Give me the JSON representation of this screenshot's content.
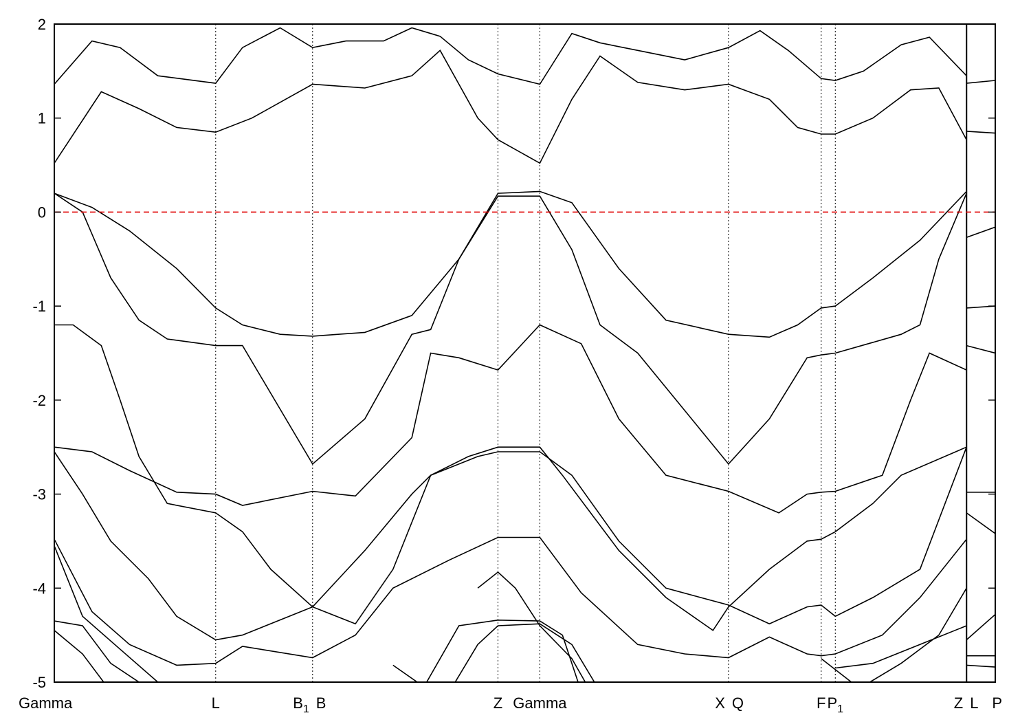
{
  "chart_data": {
    "type": "line",
    "title": "",
    "xlabel": "",
    "ylabel": "",
    "ylim": [
      -5,
      2
    ],
    "yticks": [
      2,
      1,
      0,
      -1,
      -2,
      -3,
      -4,
      -5
    ],
    "ytick_labels": [
      "2",
      "1",
      "0",
      "-1",
      "-2",
      "-3",
      "-4",
      "-5"
    ],
    "fermi_level": 0,
    "fermi_line_color": "#e00000",
    "grid": "dotted vertical lines at high-symmetry points",
    "xlim": [
      0,
      1
    ],
    "kpoints": [
      {
        "pos": 0.0,
        "label": "Gamma"
      },
      {
        "pos": 0.1715,
        "label": "L"
      },
      {
        "pos": 0.2745,
        "label": "B",
        "sub": "1"
      },
      {
        "pos": 0.2745,
        "label": "B"
      },
      {
        "pos": 0.4715,
        "label": "Z"
      },
      {
        "pos": 0.516,
        "label": "Gamma"
      },
      {
        "pos": 0.7165,
        "label": "X"
      },
      {
        "pos": 0.7165,
        "label": "Q"
      },
      {
        "pos": 0.815,
        "label": "F"
      },
      {
        "pos": 0.83,
        "label": "P",
        "sub": "1"
      },
      {
        "pos": 0.9695,
        "label": "Z"
      },
      {
        "pos": 0.9695,
        "label": "L"
      },
      {
        "pos": 1.0,
        "label": "P"
      }
    ],
    "series": [
      {
        "values": [
          [
            0,
            1.36
          ],
          [
            0.04,
            1.82
          ],
          [
            0.07,
            1.75
          ],
          [
            0.11,
            1.45
          ],
          [
            0.1715,
            1.37
          ],
          [
            0.2,
            1.75
          ],
          [
            0.24,
            1.96
          ],
          [
            0.2745,
            1.75
          ],
          [
            0.31,
            1.82
          ],
          [
            0.35,
            1.82
          ],
          [
            0.38,
            1.96
          ],
          [
            0.41,
            1.87
          ],
          [
            0.44,
            1.62
          ],
          [
            0.4715,
            1.47
          ],
          [
            0.516,
            1.36
          ],
          [
            0.55,
            1.9
          ],
          [
            0.58,
            1.8
          ],
          [
            0.62,
            1.72
          ],
          [
            0.67,
            1.62
          ],
          [
            0.7165,
            1.75
          ],
          [
            0.75,
            1.93
          ],
          [
            0.78,
            1.72
          ],
          [
            0.815,
            1.42
          ],
          [
            0.83,
            1.4
          ],
          [
            0.86,
            1.5
          ],
          [
            0.9,
            1.78
          ],
          [
            0.93,
            1.86
          ],
          [
            0.9695,
            1.45
          ]
        ]
      },
      {
        "values": [
          [
            0,
            0.52
          ],
          [
            0.05,
            1.28
          ],
          [
            0.09,
            1.1
          ],
          [
            0.13,
            0.9
          ],
          [
            0.1715,
            0.85
          ],
          [
            0.21,
            1.0
          ],
          [
            0.2745,
            1.36
          ],
          [
            0.33,
            1.32
          ],
          [
            0.38,
            1.45
          ],
          [
            0.41,
            1.72
          ],
          [
            0.45,
            1.0
          ],
          [
            0.4715,
            0.77
          ],
          [
            0.516,
            0.52
          ],
          [
            0.55,
            1.2
          ],
          [
            0.58,
            1.66
          ],
          [
            0.62,
            1.38
          ],
          [
            0.67,
            1.3
          ],
          [
            0.7165,
            1.36
          ],
          [
            0.76,
            1.2
          ],
          [
            0.79,
            0.9
          ],
          [
            0.815,
            0.83
          ],
          [
            0.83,
            0.83
          ],
          [
            0.87,
            1.0
          ],
          [
            0.91,
            1.3
          ],
          [
            0.94,
            1.32
          ],
          [
            0.9695,
            0.77
          ]
        ]
      },
      {
        "values": [
          [
            0,
            0.2
          ],
          [
            0.04,
            0.05
          ],
          [
            0.08,
            -0.2
          ],
          [
            0.13,
            -0.6
          ],
          [
            0.1715,
            -1.02
          ],
          [
            0.2,
            -1.2
          ],
          [
            0.24,
            -1.3
          ],
          [
            0.2745,
            -1.32
          ],
          [
            0.33,
            -1.28
          ],
          [
            0.38,
            -1.1
          ],
          [
            0.43,
            -0.5
          ],
          [
            0.4715,
            0.2
          ],
          [
            0.516,
            0.22
          ],
          [
            0.55,
            0.1
          ],
          [
            0.6,
            -0.6
          ],
          [
            0.65,
            -1.15
          ],
          [
            0.7165,
            -1.3
          ],
          [
            0.76,
            -1.33
          ],
          [
            0.79,
            -1.2
          ],
          [
            0.815,
            -1.02
          ],
          [
            0.83,
            -1.0
          ],
          [
            0.87,
            -0.7
          ],
          [
            0.92,
            -0.3
          ],
          [
            0.9695,
            0.22
          ]
        ]
      },
      {
        "values": [
          [
            0,
            0.2
          ],
          [
            0.03,
            0.0
          ],
          [
            0.06,
            -0.7
          ],
          [
            0.09,
            -1.15
          ],
          [
            0.12,
            -1.35
          ],
          [
            0.1715,
            -1.42
          ],
          [
            0.2,
            -1.42
          ],
          [
            0.2745,
            -2.68
          ],
          [
            0.33,
            -2.2
          ],
          [
            0.38,
            -1.3
          ],
          [
            0.4,
            -1.25
          ],
          [
            0.43,
            -0.5
          ],
          [
            0.4715,
            0.17
          ],
          [
            0.516,
            0.17
          ],
          [
            0.55,
            -0.4
          ],
          [
            0.58,
            -1.2
          ],
          [
            0.62,
            -1.5
          ],
          [
            0.7165,
            -2.68
          ],
          [
            0.76,
            -2.2
          ],
          [
            0.8,
            -1.55
          ],
          [
            0.815,
            -1.52
          ],
          [
            0.83,
            -1.5
          ],
          [
            0.9,
            -1.3
          ],
          [
            0.92,
            -1.2
          ],
          [
            0.94,
            -0.5
          ],
          [
            0.9695,
            0.2
          ]
        ]
      },
      {
        "values": [
          [
            0,
            -1.2
          ],
          [
            0.02,
            -1.2
          ],
          [
            0.05,
            -1.42
          ],
          [
            0.07,
            -2.0
          ],
          [
            0.09,
            -2.6
          ],
          [
            0.12,
            -3.1
          ],
          [
            0.1715,
            -3.2
          ],
          [
            0.2,
            -3.4
          ],
          [
            0.23,
            -3.8
          ],
          [
            0.2745,
            -4.2
          ],
          [
            0.32,
            -4.38
          ],
          [
            0.36,
            -3.8
          ],
          [
            0.4,
            -2.8
          ],
          [
            0.45,
            -2.6
          ],
          [
            0.4715,
            -2.55
          ],
          [
            0.516,
            -2.55
          ],
          [
            0.55,
            -2.8
          ],
          [
            0.6,
            -3.5
          ],
          [
            0.65,
            -4.0
          ],
          [
            0.7165,
            -4.18
          ],
          [
            0.76,
            -4.38
          ],
          [
            0.8,
            -4.2
          ],
          [
            0.815,
            -4.18
          ],
          [
            0.83,
            -4.3
          ],
          [
            0.87,
            -4.1
          ],
          [
            0.92,
            -3.8
          ],
          [
            0.9695,
            -2.5
          ]
        ]
      },
      {
        "values": [
          [
            0,
            -2.5
          ],
          [
            0.04,
            -2.55
          ],
          [
            0.08,
            -2.75
          ],
          [
            0.13,
            -2.98
          ],
          [
            0.1715,
            -3.0
          ],
          [
            0.2,
            -3.12
          ],
          [
            0.2745,
            -2.97
          ],
          [
            0.32,
            -3.02
          ],
          [
            0.38,
            -2.4
          ],
          [
            0.4,
            -1.5
          ],
          [
            0.43,
            -1.55
          ],
          [
            0.4715,
            -1.68
          ],
          [
            0.516,
            -1.2
          ],
          [
            0.56,
            -1.4
          ],
          [
            0.6,
            -2.2
          ],
          [
            0.65,
            -2.8
          ],
          [
            0.7165,
            -2.97
          ],
          [
            0.77,
            -3.2
          ],
          [
            0.8,
            -3.0
          ],
          [
            0.815,
            -2.98
          ],
          [
            0.83,
            -2.97
          ],
          [
            0.88,
            -2.8
          ],
          [
            0.91,
            -2.0
          ],
          [
            0.93,
            -1.5
          ],
          [
            0.9695,
            -1.68
          ]
        ]
      },
      {
        "values": [
          [
            0,
            -2.55
          ],
          [
            0.03,
            -3.0
          ],
          [
            0.06,
            -3.5
          ],
          [
            0.1,
            -3.9
          ],
          [
            0.13,
            -4.3
          ],
          [
            0.1715,
            -4.55
          ],
          [
            0.2,
            -4.5
          ],
          [
            0.2745,
            -4.2
          ],
          [
            0.33,
            -3.6
          ],
          [
            0.38,
            -3.0
          ],
          [
            0.4,
            -2.8
          ],
          [
            0.44,
            -2.6
          ],
          [
            0.4715,
            -2.5
          ],
          [
            0.516,
            -2.5
          ],
          [
            0.54,
            -2.8
          ],
          [
            0.57,
            -3.2
          ],
          [
            0.6,
            -3.6
          ],
          [
            0.65,
            -4.1
          ],
          [
            0.7,
            -4.45
          ],
          [
            0.7165,
            -4.2
          ],
          [
            0.76,
            -3.8
          ],
          [
            0.8,
            -3.5
          ],
          [
            0.815,
            -3.48
          ],
          [
            0.83,
            -3.4
          ],
          [
            0.87,
            -3.1
          ],
          [
            0.9,
            -2.8
          ],
          [
            0.9695,
            -2.5
          ]
        ]
      },
      {
        "values": [
          [
            0,
            -3.48
          ],
          [
            0.04,
            -4.25
          ],
          [
            0.08,
            -4.6
          ],
          [
            0.13,
            -4.82
          ],
          [
            0.1715,
            -4.8
          ],
          [
            0.2,
            -4.62
          ],
          [
            0.2745,
            -4.74
          ],
          [
            0.32,
            -4.5
          ],
          [
            0.36,
            -4.0
          ],
          [
            0.42,
            -3.7
          ],
          [
            0.4715,
            -3.46
          ],
          [
            0.516,
            -3.46
          ],
          [
            0.56,
            -4.05
          ],
          [
            0.62,
            -4.6
          ],
          [
            0.67,
            -4.7
          ],
          [
            0.7165,
            -4.74
          ],
          [
            0.76,
            -4.52
          ],
          [
            0.8,
            -4.7
          ],
          [
            0.815,
            -4.72
          ],
          [
            0.83,
            -4.7
          ],
          [
            0.88,
            -4.5
          ],
          [
            0.92,
            -4.1
          ],
          [
            0.9695,
            -3.48
          ]
        ]
      },
      {
        "values": [
          [
            0,
            -3.55
          ],
          [
            0.03,
            -4.3
          ],
          [
            0.07,
            -4.65
          ],
          [
            0.11,
            -5.0
          ],
          [
            0.15,
            -5.2
          ]
        ]
      },
      {
        "values": [
          [
            0,
            -4.35
          ],
          [
            0.03,
            -4.4
          ],
          [
            0.06,
            -4.8
          ],
          [
            0.09,
            -5.0
          ],
          [
            0.11,
            -5.2
          ]
        ]
      },
      {
        "values": [
          [
            0,
            -4.45
          ],
          [
            0.03,
            -4.7
          ],
          [
            0.06,
            -5.1
          ]
        ]
      },
      {
        "values": [
          [
            0.42,
            -5.1
          ],
          [
            0.45,
            -4.6
          ],
          [
            0.4715,
            -4.4
          ],
          [
            0.516,
            -4.38
          ],
          [
            0.55,
            -4.6
          ],
          [
            0.58,
            -5.1
          ]
        ]
      },
      {
        "values": [
          [
            0.39,
            -5.1
          ],
          [
            0.43,
            -4.4
          ],
          [
            0.4715,
            -4.34
          ],
          [
            0.516,
            -4.35
          ],
          [
            0.54,
            -4.5
          ],
          [
            0.56,
            -5.1
          ]
        ]
      },
      {
        "values": [
          [
            0.45,
            -4.0
          ],
          [
            0.4715,
            -3.83
          ],
          [
            0.49,
            -4.0
          ],
          [
            0.516,
            -4.4
          ],
          [
            0.55,
            -4.75
          ],
          [
            0.57,
            -5.1
          ]
        ]
      },
      {
        "values": [
          [
            0.36,
            -4.82
          ],
          [
            0.4,
            -5.1
          ]
        ]
      },
      {
        "values": [
          [
            0.83,
            -4.85
          ],
          [
            0.87,
            -4.8
          ],
          [
            0.92,
            -4.6
          ],
          [
            0.9695,
            -4.4
          ]
        ]
      },
      {
        "values": [
          [
            0.815,
            -4.75
          ],
          [
            0.86,
            -5.1
          ]
        ]
      },
      {
        "values": [
          [
            0.85,
            -5.1
          ],
          [
            0.9,
            -4.8
          ],
          [
            0.94,
            -4.5
          ],
          [
            0.9695,
            -4.0
          ]
        ]
      }
    ],
    "last_segment": [
      {
        "values": [
          [
            0.9695,
            1.37
          ],
          [
            1.0,
            1.4
          ]
        ]
      },
      {
        "values": [
          [
            0.9695,
            0.86
          ],
          [
            1.0,
            0.84
          ]
        ]
      },
      {
        "values": [
          [
            0.9695,
            -0.27
          ],
          [
            1.0,
            -0.16
          ]
        ]
      },
      {
        "values": [
          [
            0.9695,
            -1.02
          ],
          [
            1.0,
            -1.0
          ]
        ]
      },
      {
        "values": [
          [
            0.9695,
            -1.42
          ],
          [
            1.0,
            -1.5
          ]
        ]
      },
      {
        "values": [
          [
            0.9695,
            -2.98
          ],
          [
            1.0,
            -2.98
          ]
        ]
      },
      {
        "values": [
          [
            0.9695,
            -3.2
          ],
          [
            1.0,
            -3.42
          ]
        ]
      },
      {
        "values": [
          [
            0.9695,
            -4.55
          ],
          [
            1.0,
            -4.28
          ]
        ]
      },
      {
        "values": [
          [
            0.9695,
            -4.72
          ],
          [
            1.0,
            -4.72
          ]
        ]
      },
      {
        "values": [
          [
            0.9695,
            -4.82
          ],
          [
            1.0,
            -4.84
          ]
        ]
      }
    ]
  }
}
